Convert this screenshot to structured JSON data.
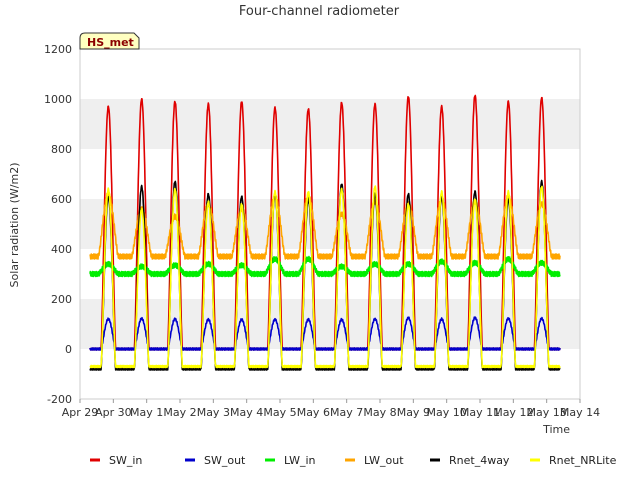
{
  "chart_data": {
    "type": "line",
    "title": "Four-channel radiometer",
    "xlabel": "Time",
    "ylabel": "Solar radiation (W/m2)",
    "ylim": [
      -200,
      1200
    ],
    "yticks": [
      -200,
      0,
      200,
      400,
      600,
      800,
      1000,
      1200
    ],
    "xlim": [
      0,
      15
    ],
    "xticks": [
      {
        "v": 0,
        "label": "Apr 29"
      },
      {
        "v": 1,
        "label": "Apr 30"
      },
      {
        "v": 2,
        "label": "May 1"
      },
      {
        "v": 3,
        "label": "May 2"
      },
      {
        "v": 4,
        "label": "May 3"
      },
      {
        "v": 5,
        "label": "May 4"
      },
      {
        "v": 6,
        "label": "May 5"
      },
      {
        "v": 7,
        "label": "May 6"
      },
      {
        "v": 8,
        "label": "May 7"
      },
      {
        "v": 9,
        "label": "May 8"
      },
      {
        "v": 10,
        "label": "May 9"
      },
      {
        "v": 11,
        "label": "May 10"
      },
      {
        "v": 12,
        "label": "May 11"
      },
      {
        "v": 13,
        "label": "May 12"
      },
      {
        "v": 14,
        "label": "May 13"
      },
      {
        "v": 15,
        "label": "May 14"
      }
    ],
    "day_centers": [
      0.85,
      1.85,
      2.85,
      3.85,
      4.85,
      5.85,
      6.85,
      7.85,
      8.85,
      9.85,
      10.85,
      11.85,
      12.85,
      13.85
    ],
    "grid": "horizontal bands",
    "legend_position": "bottom",
    "annotation": "HS_met",
    "series": [
      {
        "name": "SW_in",
        "color": "#e00000",
        "night": 0,
        "daily_peak": [
          970,
          1000,
          990,
          980,
          990,
          965,
          960,
          985,
          980,
          1010,
          970,
          1015,
          990,
          1005
        ]
      },
      {
        "name": "SW_out",
        "color": "#0000cc",
        "night": 0,
        "daily_peak": [
          120,
          122,
          120,
          118,
          118,
          118,
          118,
          118,
          120,
          125,
          120,
          125,
          122,
          122
        ]
      },
      {
        "name": "LW_in",
        "color": "#00ee00",
        "night": 300,
        "daily_peak": [
          340,
          330,
          335,
          340,
          335,
          360,
          360,
          330,
          340,
          340,
          350,
          345,
          360,
          345
        ]
      },
      {
        "name": "LW_out",
        "color": "#ffa500",
        "night": 370,
        "daily_peak": [
          620,
          560,
          530,
          580,
          560,
          610,
          610,
          540,
          590,
          580,
          600,
          590,
          610,
          580
        ]
      },
      {
        "name": "Rnet_4way",
        "color": "#000000",
        "night": -80,
        "daily_peak": [
          610,
          650,
          670,
          620,
          610,
          620,
          600,
          660,
          620,
          620,
          610,
          630,
          600,
          670
        ]
      },
      {
        "name": "Rnet_NRLite",
        "color": "#ffff00",
        "night": -70,
        "daily_peak": [
          640,
          560,
          640,
          590,
          580,
          630,
          630,
          640,
          650,
          580,
          630,
          600,
          630,
          650
        ]
      }
    ]
  }
}
